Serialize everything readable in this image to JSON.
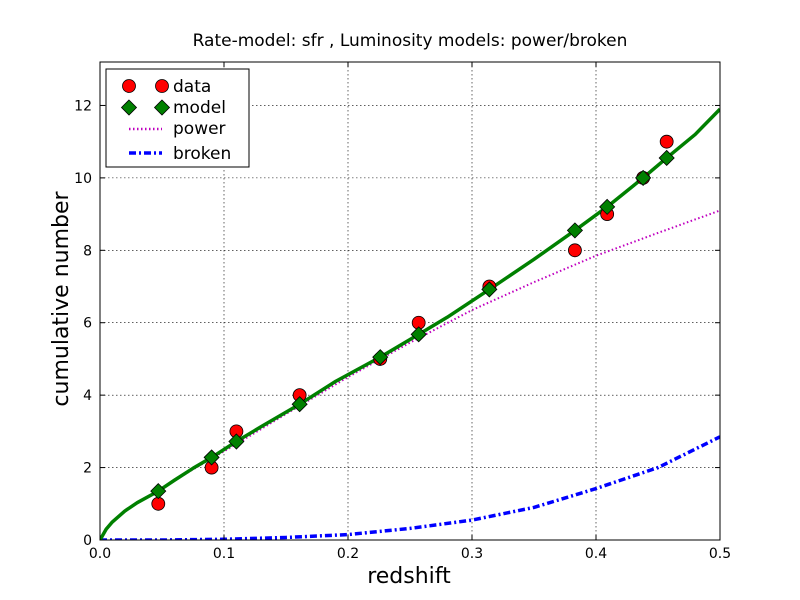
{
  "chart_data": {
    "type": "line",
    "title": "Rate-model: sfr , Luminosity models: power/broken",
    "xlabel": "redshift",
    "ylabel": "cumulative number",
    "xlim": [
      0.0,
      0.5
    ],
    "ylim": [
      0,
      13.2
    ],
    "xticks": [
      0.0,
      0.1,
      0.2,
      0.3,
      0.4,
      0.5
    ],
    "xtick_labels": [
      "0.0",
      "0.1",
      "0.2",
      "0.3",
      "0.4",
      "0.5"
    ],
    "yticks": [
      0,
      2,
      4,
      6,
      8,
      10,
      12
    ],
    "ytick_labels": [
      "0",
      "2",
      "4",
      "6",
      "8",
      "10",
      "12"
    ],
    "grid": true,
    "legend_position": "top-left",
    "colors": {
      "data": "#ff0000",
      "model": "#008000",
      "power": "#bf00bf",
      "broken": "#0000ff"
    },
    "series": [
      {
        "name": "data",
        "kind": "scatter",
        "marker": "circle",
        "x": [
          0.047,
          0.09,
          0.11,
          0.161,
          0.226,
          0.257,
          0.314,
          0.383,
          0.409,
          0.438,
          0.457
        ],
        "y": [
          1,
          2,
          3,
          4,
          5,
          6,
          7,
          8,
          9,
          10,
          11
        ]
      },
      {
        "name": "model",
        "kind": "line+markers",
        "marker": "diamond",
        "x": [
          0.0,
          0.005,
          0.01,
          0.02,
          0.03,
          0.047,
          0.06,
          0.075,
          0.09,
          0.11,
          0.13,
          0.161,
          0.19,
          0.226,
          0.257,
          0.28,
          0.314,
          0.35,
          0.383,
          0.409,
          0.438,
          0.457,
          0.48,
          0.5
        ],
        "y": [
          0.0,
          0.3,
          0.5,
          0.8,
          1.03,
          1.35,
          1.65,
          1.98,
          2.28,
          2.72,
          3.13,
          3.75,
          4.38,
          5.05,
          5.68,
          6.15,
          6.92,
          7.75,
          8.55,
          9.2,
          10.0,
          10.55,
          11.2,
          11.9
        ],
        "marker_x": [
          0.047,
          0.09,
          0.11,
          0.161,
          0.226,
          0.257,
          0.314,
          0.383,
          0.409,
          0.438,
          0.457
        ],
        "marker_y": [
          1.35,
          2.28,
          2.72,
          3.75,
          5.05,
          5.68,
          6.92,
          8.55,
          9.2,
          10.0,
          10.55
        ]
      },
      {
        "name": "power",
        "kind": "line",
        "style": "dotted",
        "x": [
          0.0,
          0.005,
          0.01,
          0.02,
          0.03,
          0.05,
          0.07,
          0.09,
          0.11,
          0.15,
          0.2,
          0.25,
          0.3,
          0.35,
          0.4,
          0.45,
          0.5
        ],
        "y": [
          0.0,
          0.3,
          0.5,
          0.8,
          1.03,
          1.42,
          1.85,
          2.25,
          2.65,
          3.48,
          4.5,
          5.45,
          6.35,
          7.12,
          7.85,
          8.48,
          9.1
        ]
      },
      {
        "name": "broken",
        "kind": "line",
        "style": "dashdot",
        "x": [
          0.0,
          0.05,
          0.1,
          0.15,
          0.2,
          0.25,
          0.3,
          0.35,
          0.4,
          0.45,
          0.5
        ],
        "y": [
          0.0,
          0.0,
          0.02,
          0.07,
          0.15,
          0.32,
          0.55,
          0.9,
          1.42,
          2.0,
          2.85
        ]
      }
    ]
  }
}
